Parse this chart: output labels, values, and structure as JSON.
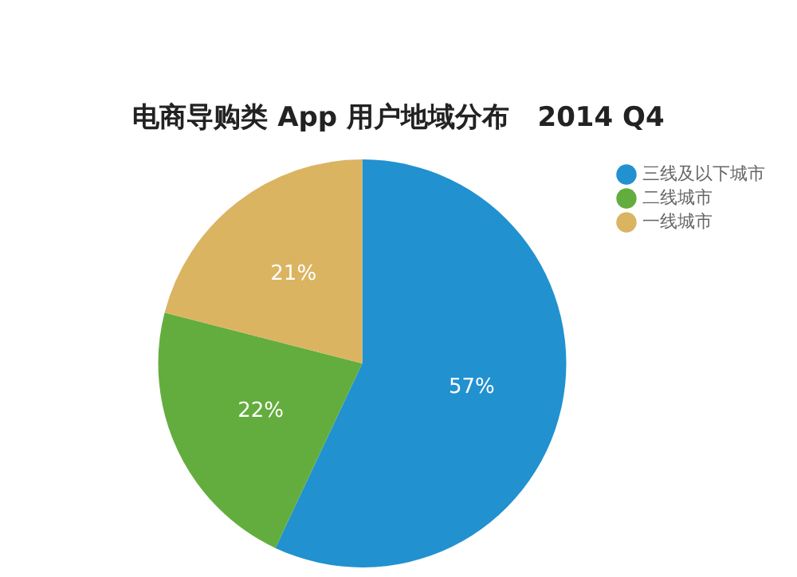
{
  "chart_data": {
    "type": "pie",
    "title": "电商导购类 App 用户地域分布   2014 Q4",
    "categories": [
      "三线及以下城市",
      "二线城市",
      "一线城市"
    ],
    "values": [
      57,
      22,
      21
    ],
    "colors": [
      "#2191cf",
      "#63ad3e",
      "#dbb462"
    ],
    "value_labels": [
      "57%",
      "22%",
      "21%"
    ],
    "legend": "top right"
  }
}
